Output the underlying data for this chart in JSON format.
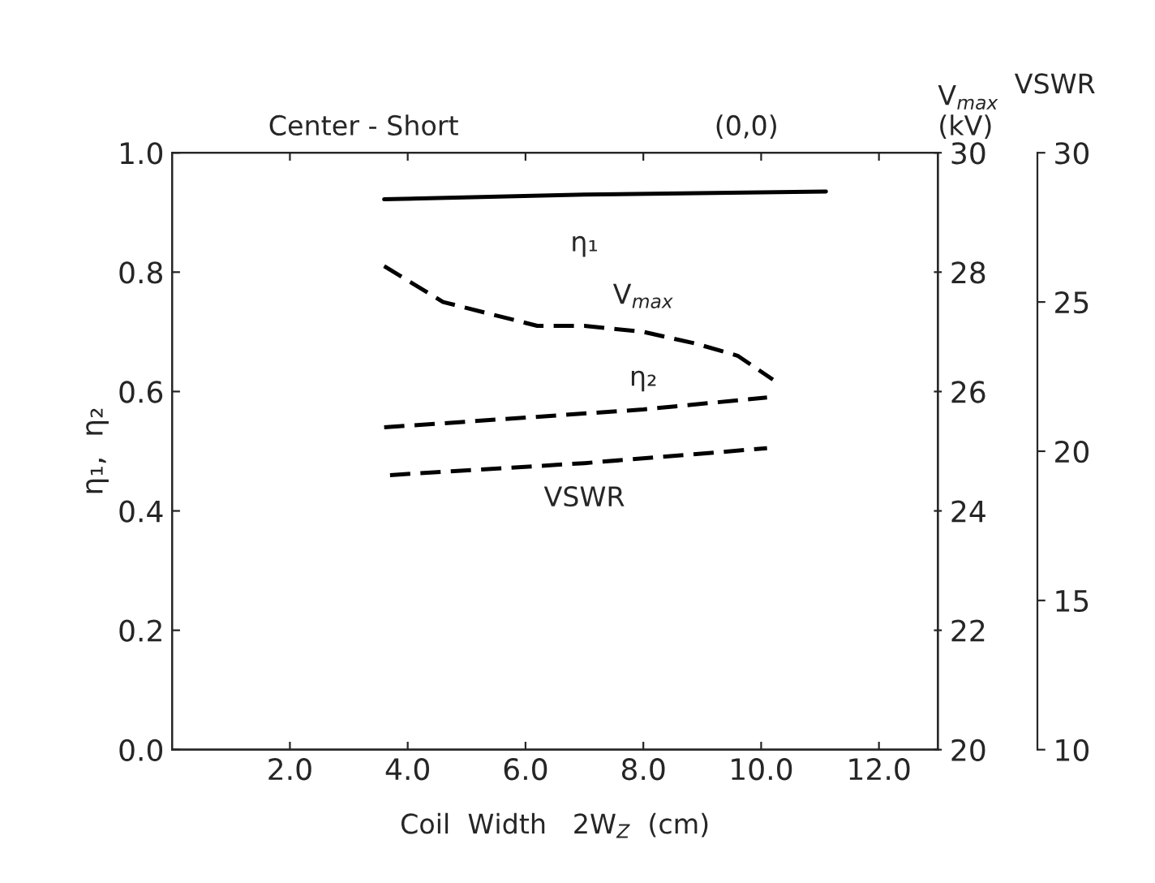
{
  "chart_data": {
    "type": "line",
    "title": "Center - Short",
    "annotations": [
      "(0,0)"
    ],
    "xlabel": "Coil  Width   2W$_{Z}$  (cm)",
    "ylabel": "η₁,  η₂",
    "y2label": "V$_{max}$\n(kV)",
    "y3label": "VSWR",
    "xlim": [
      0,
      13
    ],
    "xticks": [
      {
        "value": 2,
        "label": "2.0"
      },
      {
        "value": 4,
        "label": "4.0"
      },
      {
        "value": 6,
        "label": "6.0"
      },
      {
        "value": 8,
        "label": "8.0"
      },
      {
        "value": 10,
        "label": "10.0"
      },
      {
        "value": 12,
        "label": "12.0"
      }
    ],
    "ylim": [
      0,
      1
    ],
    "yticks": [
      {
        "value": 0,
        "label": "0.0"
      },
      {
        "value": 0.2,
        "label": "0.2"
      },
      {
        "value": 0.4,
        "label": "0.4"
      },
      {
        "value": 0.6,
        "label": "0.6"
      },
      {
        "value": 0.8,
        "label": "0.8"
      },
      {
        "value": 1,
        "label": "1.0"
      }
    ],
    "y2lim": [
      20,
      30
    ],
    "y2ticks": [
      20,
      22,
      24,
      26,
      28,
      30
    ],
    "y3lim": [
      10,
      30
    ],
    "y3ticks": [
      10,
      15,
      20,
      25,
      30
    ],
    "grid": false,
    "legend": false,
    "series": [
      {
        "name": "η₁",
        "color": "#000000",
        "line_style": "solid",
        "x": [
          3.6,
          7.0,
          11.1
        ],
        "values": [
          0.922,
          0.93,
          0.935
        ]
      },
      {
        "name": "V$_{max}$",
        "color": "#000000",
        "line_style": "dashed",
        "axis": "y2",
        "x": [
          3.6,
          4.6,
          6.2,
          7.0,
          8.0,
          8.9,
          9.6,
          10.2
        ],
        "values": [
          28.1,
          27.5,
          27.1,
          27.1,
          27.0,
          26.8,
          26.6,
          26.2
        ]
      },
      {
        "name": "η₂",
        "color": "#000000",
        "line_style": "dashed",
        "x": [
          3.6,
          8.0,
          10.1
        ],
        "values": [
          0.54,
          0.57,
          0.59
        ]
      },
      {
        "name": "VSWR",
        "color": "#000000",
        "line_style": "dashed",
        "axis": "y3",
        "x": [
          3.7,
          7.0,
          10.1
        ],
        "values": [
          19.2,
          19.6,
          20.1
        ]
      }
    ]
  }
}
